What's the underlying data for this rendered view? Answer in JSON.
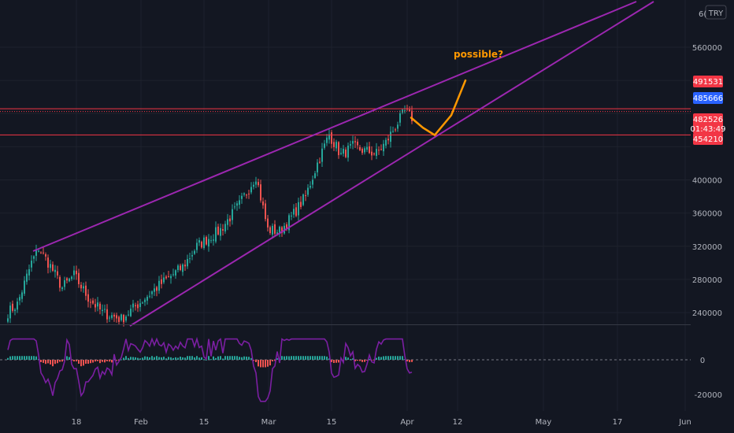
{
  "chart_data": {
    "type": "candlestick",
    "currency_label": "TRY",
    "axis_top_partial": "6(",
    "price_axis": {
      "ticks": [
        560000,
        400000,
        360000,
        320000,
        280000,
        240000
      ],
      "tick_labels": [
        "560000",
        "400000",
        "360000",
        "320000",
        "280000",
        "240000"
      ],
      "range": [
        225000,
        610000
      ]
    },
    "indicator_axis": {
      "ticks": [
        0,
        -20000
      ],
      "tick_labels": [
        "0",
        "-20000"
      ],
      "range": [
        -25000,
        13000
      ]
    },
    "time_axis": {
      "labels": [
        "18",
        "Feb",
        "15",
        "Mar",
        "15",
        "Apr",
        "12",
        "May",
        "17",
        "Jun"
      ]
    },
    "price_tags": [
      {
        "label": "491531",
        "value": 491531,
        "color": "#f23645"
      },
      {
        "label": "485666",
        "value": 485666,
        "color": "#2962ff"
      },
      {
        "label": "482526",
        "value": 482526,
        "color": "#f23645",
        "sub": "01:43:49"
      },
      {
        "label": "454210",
        "value": 454210,
        "color": "#f23645"
      }
    ],
    "horizontal_levels": [
      {
        "value": 485800,
        "color": "#f23645",
        "style": "solid"
      },
      {
        "value": 482526,
        "color": "#f23645",
        "style": "dotted"
      },
      {
        "value": 454210,
        "color": "#f23645",
        "style": "solid"
      }
    ],
    "annotation": {
      "text": "possible?",
      "color": "#ff9800"
    },
    "colors": {
      "up": "#26a69a",
      "down": "#ef5350",
      "channel": "#9c27b0",
      "projection": "#ff9800",
      "indicator_line": "#7b1fa2",
      "indicator_up": "#26a69a",
      "indicator_down": "#ef5350"
    },
    "price_anchors": [
      [
        0,
        240000
      ],
      [
        4,
        250000
      ],
      [
        10,
        300000
      ],
      [
        13,
        318000
      ],
      [
        18,
        296000
      ],
      [
        23,
        270000
      ],
      [
        28,
        285000
      ],
      [
        34,
        258000
      ],
      [
        40,
        240000
      ],
      [
        48,
        232000
      ],
      [
        55,
        250000
      ],
      [
        65,
        275000
      ],
      [
        74,
        295000
      ],
      [
        80,
        320000
      ],
      [
        90,
        340000
      ],
      [
        98,
        370000
      ],
      [
        105,
        405000
      ],
      [
        110,
        340000
      ],
      [
        115,
        338000
      ],
      [
        120,
        355000
      ],
      [
        126,
        380000
      ],
      [
        131,
        420000
      ],
      [
        136,
        455000
      ],
      [
        141,
        430000
      ],
      [
        146,
        440000
      ],
      [
        151,
        435000
      ],
      [
        156,
        432000
      ],
      [
        160,
        445000
      ],
      [
        164,
        465000
      ],
      [
        168,
        482000
      ],
      [
        171,
        475000
      ]
    ],
    "projection_path": [
      [
        171,
        475000
      ],
      [
        176,
        463000
      ],
      [
        181,
        454000
      ],
      [
        188,
        478000
      ],
      [
        194,
        520000
      ]
    ]
  }
}
